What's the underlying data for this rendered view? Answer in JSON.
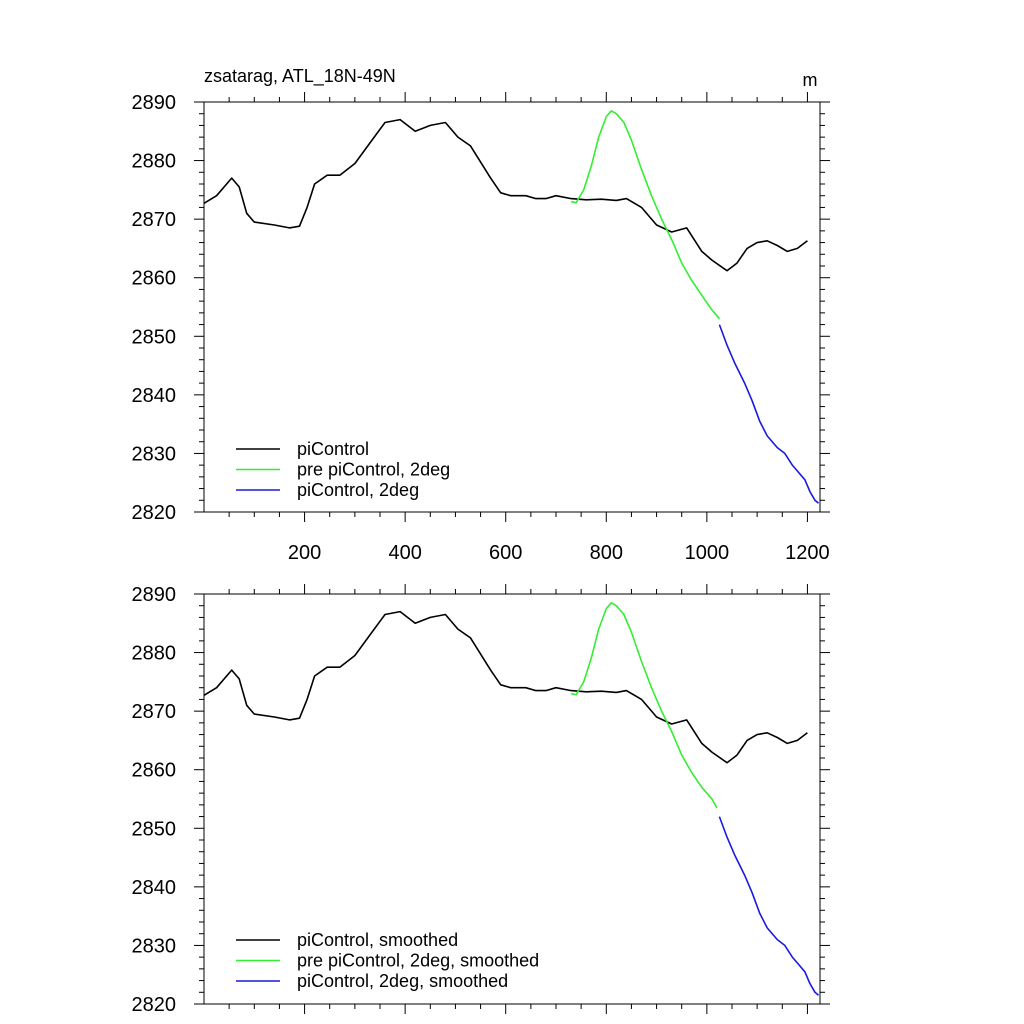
{
  "chart_data": [
    {
      "type": "line",
      "title": "zsatarag, ATL_18N-49N",
      "units": "m",
      "xlim": [
        0,
        1225
      ],
      "ylim": [
        2820,
        2890
      ],
      "x_ticks": [
        200,
        400,
        600,
        800,
        1000,
        1200
      ],
      "x_tick_labels": [
        "200",
        "400",
        "600",
        "800",
        "1000",
        "1200"
      ],
      "y_ticks": [
        2820,
        2830,
        2840,
        2850,
        2860,
        2870,
        2880,
        2890
      ],
      "y_tick_labels": [
        "2820",
        "2830",
        "2840",
        "2850",
        "2860",
        "2870",
        "2880",
        "2890"
      ],
      "legend": [
        "piControl",
        "pre piControl, 2deg",
        "piControl, 2deg"
      ],
      "series": [
        {
          "name": "piControl",
          "color": "#000000",
          "x": [
            0,
            25,
            55,
            70,
            85,
            100,
            140,
            170,
            190,
            205,
            220,
            245,
            270,
            300,
            330,
            360,
            390,
            420,
            450,
            480,
            505,
            530,
            570,
            590,
            610,
            640,
            660,
            680,
            700,
            730,
            760,
            790,
            820,
            840,
            870,
            900,
            930,
            960,
            990,
            1010,
            1040,
            1060,
            1080,
            1100,
            1120,
            1140,
            1160,
            1180,
            1200
          ],
          "y": [
            2872.7,
            2874,
            2877,
            2875.5,
            2871,
            2869.5,
            2869,
            2868.5,
            2868.8,
            2872,
            2876,
            2877.5,
            2877.5,
            2879.5,
            2883,
            2886.5,
            2887,
            2885,
            2886,
            2886.5,
            2884,
            2882.5,
            2877,
            2874.5,
            2874,
            2874,
            2873.5,
            2873.5,
            2874,
            2873.5,
            2873.3,
            2873.4,
            2873.2,
            2873.5,
            2872,
            2869,
            2867.8,
            2868.5,
            2864.5,
            2863,
            2861.2,
            2862.5,
            2865,
            2866,
            2866.3,
            2865.5,
            2864.5,
            2865,
            2866.3
          ]
        },
        {
          "name": "pre piControl, 2deg",
          "color": "#33ee33",
          "x": [
            730,
            740,
            755,
            770,
            785,
            800,
            810,
            820,
            835,
            850,
            870,
            890,
            910,
            930,
            950,
            970,
            990,
            1010,
            1025
          ],
          "y": [
            2873,
            2872.8,
            2875,
            2879,
            2884,
            2887.5,
            2888.5,
            2888,
            2886.5,
            2883.5,
            2878.5,
            2874,
            2870,
            2866.5,
            2862.5,
            2859.5,
            2857,
            2854.5,
            2853
          ]
        },
        {
          "name": "piControl, 2deg",
          "color": "#1a1ae0",
          "x": [
            1025,
            1040,
            1055,
            1075,
            1090,
            1105,
            1120,
            1140,
            1155,
            1170,
            1180,
            1195,
            1205,
            1215,
            1222
          ],
          "y": [
            2852,
            2848.5,
            2845.5,
            2842,
            2839,
            2835.5,
            2833,
            2831,
            2830,
            2828,
            2827,
            2825.5,
            2823.5,
            2822,
            2821.5
          ]
        }
      ]
    },
    {
      "type": "line",
      "title": "",
      "xlim": [
        0,
        1225
      ],
      "ylim": [
        2820,
        2890
      ],
      "y_ticks": [
        2820,
        2830,
        2840,
        2850,
        2860,
        2870,
        2880,
        2890
      ],
      "y_tick_labels": [
        "2820",
        "2830",
        "2840",
        "2850",
        "2860",
        "2870",
        "2880",
        "2890"
      ],
      "legend": [
        "piControl, smoothed",
        "pre piControl, 2deg, smoothed",
        "piControl, 2deg, smoothed"
      ],
      "series": [
        {
          "name": "piControl, smoothed",
          "color": "#000000",
          "x": [
            0,
            25,
            55,
            70,
            85,
            100,
            140,
            170,
            190,
            205,
            220,
            245,
            270,
            300,
            330,
            360,
            390,
            420,
            450,
            480,
            505,
            530,
            570,
            590,
            610,
            640,
            660,
            680,
            700,
            730,
            760,
            790,
            820,
            840,
            870,
            900,
            930,
            960,
            990,
            1010,
            1040,
            1060,
            1080,
            1100,
            1120,
            1140,
            1160,
            1180,
            1200
          ],
          "y": [
            2872.7,
            2874,
            2877,
            2875.5,
            2871,
            2869.5,
            2869,
            2868.5,
            2868.8,
            2872,
            2876,
            2877.5,
            2877.5,
            2879.5,
            2883,
            2886.5,
            2887,
            2885,
            2886,
            2886.5,
            2884,
            2882.5,
            2877,
            2874.5,
            2874,
            2874,
            2873.5,
            2873.5,
            2874,
            2873.5,
            2873.3,
            2873.4,
            2873.2,
            2873.5,
            2872,
            2869,
            2867.8,
            2868.5,
            2864.5,
            2863,
            2861.2,
            2862.5,
            2865,
            2866,
            2866.3,
            2865.5,
            2864.5,
            2865,
            2866.3
          ]
        },
        {
          "name": "pre piControl, 2deg, smoothed",
          "color": "#33ee33",
          "x": [
            730,
            740,
            755,
            770,
            785,
            800,
            810,
            820,
            835,
            850,
            870,
            890,
            910,
            930,
            950,
            970,
            990,
            1010,
            1020
          ],
          "y": [
            2873,
            2872.8,
            2875,
            2879,
            2884,
            2887.5,
            2888.5,
            2888,
            2886.5,
            2883.5,
            2878.5,
            2874,
            2870,
            2866.5,
            2862.5,
            2859.5,
            2857,
            2855,
            2853.5
          ]
        },
        {
          "name": "piControl, 2deg, smoothed",
          "color": "#1a1ae0",
          "x": [
            1025,
            1040,
            1055,
            1075,
            1090,
            1105,
            1120,
            1140,
            1155,
            1170,
            1180,
            1195,
            1205,
            1215,
            1222
          ],
          "y": [
            2852,
            2848.5,
            2845.5,
            2842,
            2839,
            2835.5,
            2833,
            2831,
            2830,
            2828,
            2827,
            2825.5,
            2823.5,
            2822,
            2821.5
          ]
        }
      ]
    }
  ]
}
